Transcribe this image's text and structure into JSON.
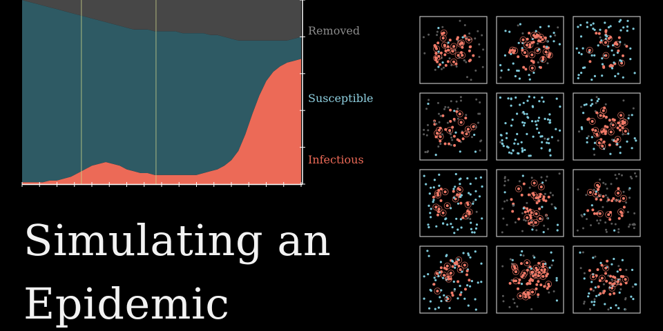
{
  "title_lines": [
    "Simulating an",
    "Epidemic"
  ],
  "colors": {
    "removed": "#474747",
    "susceptible": "#2e5a64",
    "infectious": "#ec6a57",
    "susceptible_label": "#8fd0e0",
    "removed_label": "#8c8c8c",
    "dot_susceptible": "#7ec9da",
    "dot_infected": "#f07a68",
    "dot_removed": "#5a5a5a",
    "event_line": "#cbd48a",
    "panel_border": "#bfbfbf"
  },
  "chart_data": {
    "type": "area",
    "stacked": true,
    "normalized": true,
    "x": [
      0,
      1,
      2,
      3,
      4,
      5,
      6,
      7,
      8,
      9,
      10,
      11,
      12,
      13,
      14,
      15,
      16,
      17,
      18,
      19,
      20,
      21,
      22,
      23,
      24,
      25,
      26,
      27,
      28,
      29,
      30,
      31,
      32,
      33,
      34,
      35,
      36,
      37,
      38,
      39,
      40
    ],
    "xlim": [
      0,
      40
    ],
    "ylim": [
      0,
      1
    ],
    "event_lines_x": [
      8.5,
      19.2
    ],
    "series": [
      {
        "name": "Infectious",
        "key": "infectious",
        "values": [
          0.01,
          0.01,
          0.01,
          0.01,
          0.02,
          0.02,
          0.03,
          0.04,
          0.06,
          0.08,
          0.1,
          0.11,
          0.12,
          0.11,
          0.1,
          0.08,
          0.07,
          0.06,
          0.06,
          0.05,
          0.05,
          0.05,
          0.05,
          0.05,
          0.05,
          0.05,
          0.06,
          0.07,
          0.08,
          0.1,
          0.13,
          0.18,
          0.27,
          0.38,
          0.48,
          0.56,
          0.61,
          0.64,
          0.66,
          0.67,
          0.68
        ]
      },
      {
        "name": "Susceptible",
        "key": "susceptible",
        "values": [
          0.99,
          0.98,
          0.97,
          0.96,
          0.94,
          0.93,
          0.91,
          0.89,
          0.86,
          0.83,
          0.8,
          0.78,
          0.76,
          0.76,
          0.76,
          0.77,
          0.77,
          0.78,
          0.78,
          0.78,
          0.78,
          0.78,
          0.78,
          0.77,
          0.77,
          0.77,
          0.76,
          0.74,
          0.73,
          0.7,
          0.66,
          0.6,
          0.51,
          0.4,
          0.3,
          0.22,
          0.17,
          0.14,
          0.12,
          0.12,
          0.12
        ]
      },
      {
        "name": "Removed",
        "key": "removed",
        "values": [
          0.0,
          0.01,
          0.02,
          0.03,
          0.04,
          0.05,
          0.06,
          0.07,
          0.08,
          0.09,
          0.1,
          0.11,
          0.12,
          0.13,
          0.14,
          0.15,
          0.16,
          0.16,
          0.16,
          0.17,
          0.17,
          0.17,
          0.17,
          0.18,
          0.18,
          0.18,
          0.18,
          0.19,
          0.19,
          0.2,
          0.21,
          0.22,
          0.22,
          0.22,
          0.22,
          0.22,
          0.22,
          0.22,
          0.22,
          0.21,
          0.2
        ]
      }
    ],
    "legend": [
      "Removed",
      "Susceptible",
      "Infectious"
    ]
  },
  "panels": [
    {
      "s": 0.08,
      "i": 0.48
    },
    {
      "s": 0.4,
      "i": 0.5
    },
    {
      "s": 0.65,
      "i": 0.3
    },
    {
      "s": 0.08,
      "i": 0.4
    },
    {
      "s": 0.97,
      "i": 0.0
    },
    {
      "s": 0.3,
      "i": 0.55
    },
    {
      "s": 0.65,
      "i": 0.32
    },
    {
      "s": 0.1,
      "i": 0.45
    },
    {
      "s": 0.08,
      "i": 0.3
    },
    {
      "s": 0.6,
      "i": 0.38
    },
    {
      "s": 0.15,
      "i": 0.65
    },
    {
      "s": 0.3,
      "i": 0.45
    }
  ]
}
